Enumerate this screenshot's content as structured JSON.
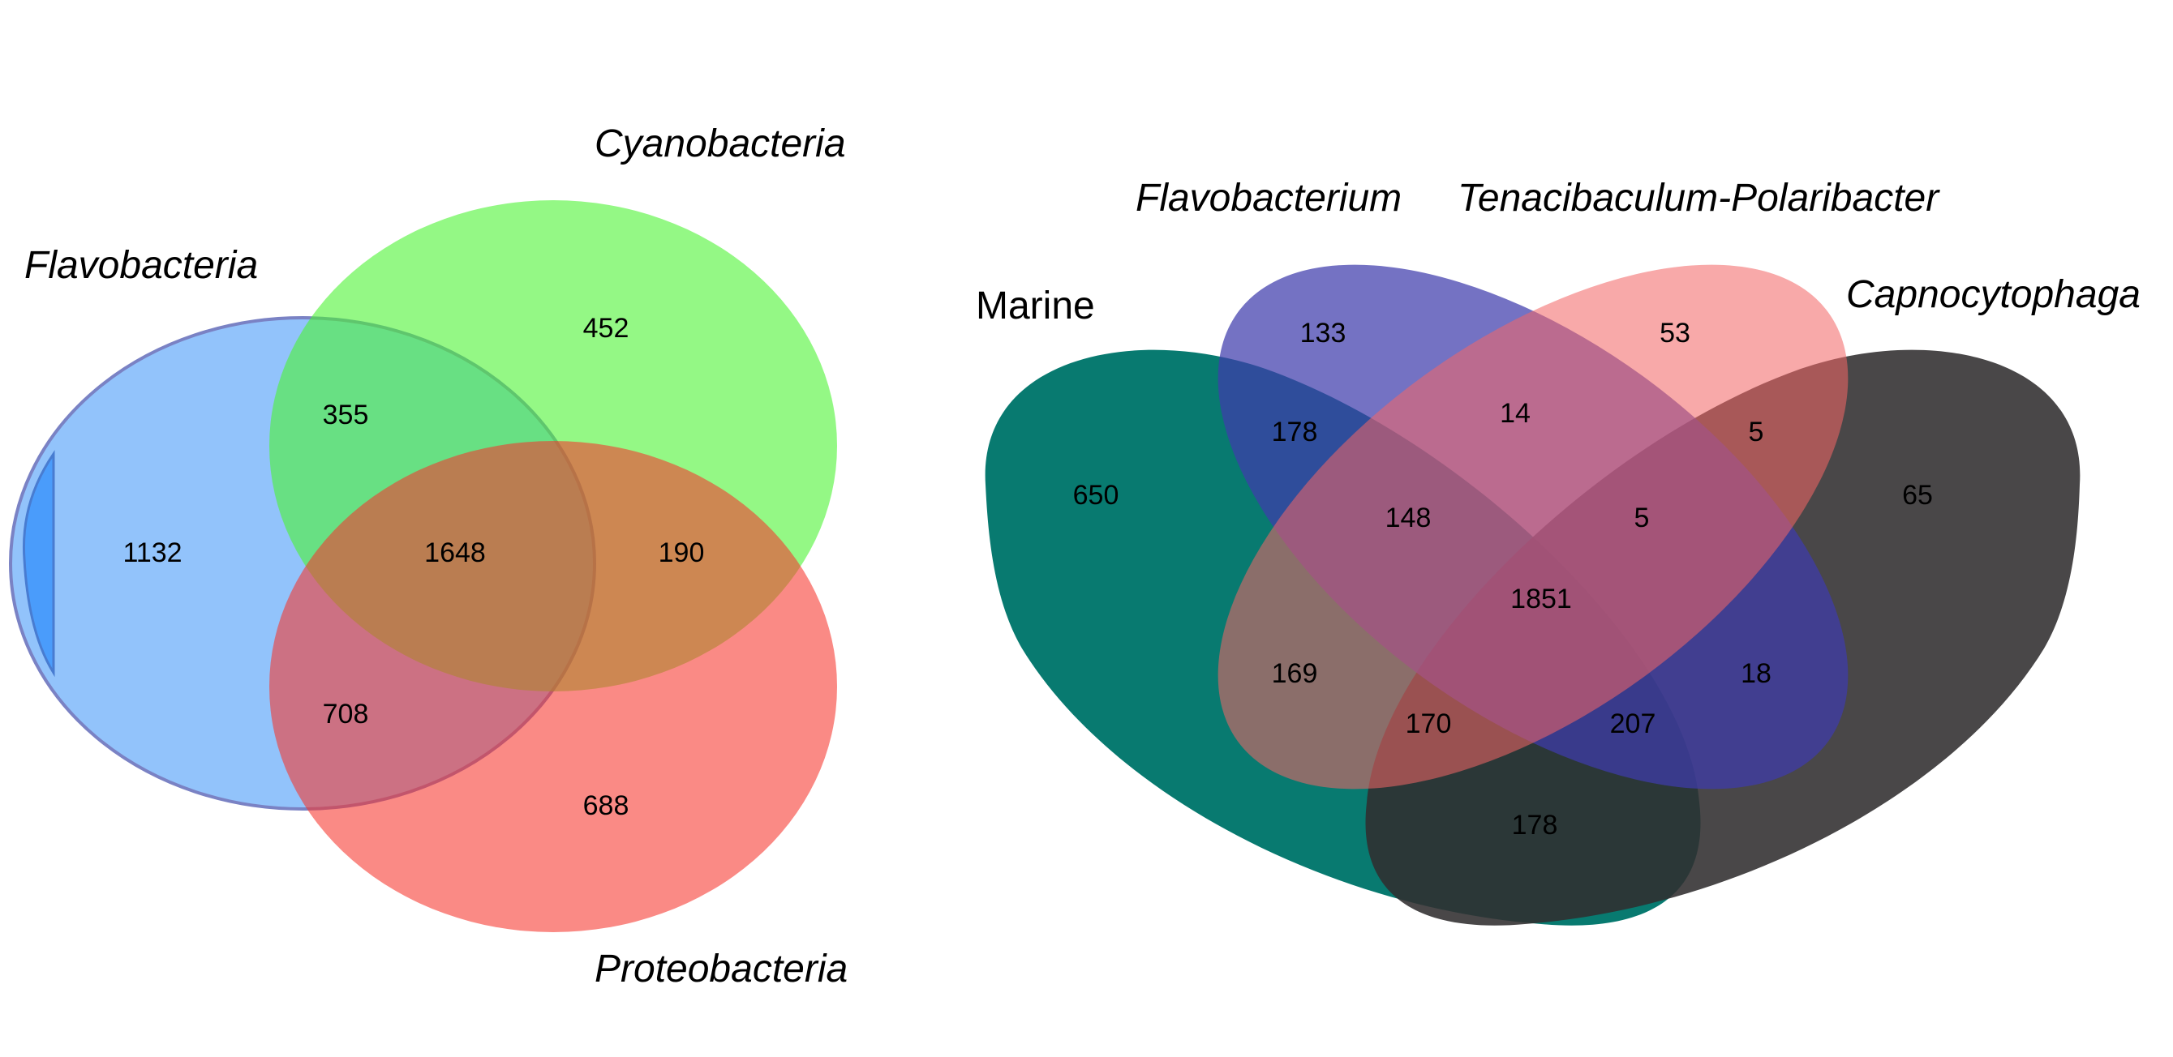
{
  "chart_data": [
    {
      "type": "venn",
      "sets": [
        {
          "name": "Flavobacteria",
          "color": "#5ea6f9",
          "italic": true
        },
        {
          "name": "Cyanobacteria",
          "color": "#4cf433",
          "italic": true
        },
        {
          "name": "Proteobacteria",
          "color": "#f7352c",
          "italic": true
        }
      ],
      "regions": [
        {
          "sets": [
            "Flavobacteria"
          ],
          "value": 1132
        },
        {
          "sets": [
            "Cyanobacteria"
          ],
          "value": 452
        },
        {
          "sets": [
            "Proteobacteria"
          ],
          "value": 688
        },
        {
          "sets": [
            "Flavobacteria",
            "Cyanobacteria"
          ],
          "value": 355
        },
        {
          "sets": [
            "Flavobacteria",
            "Proteobacteria"
          ],
          "value": 708
        },
        {
          "sets": [
            "Cyanobacteria",
            "Proteobacteria"
          ],
          "value": 190
        },
        {
          "sets": [
            "Flavobacteria",
            "Cyanobacteria",
            "Proteobacteria"
          ],
          "value": 1648
        }
      ]
    },
    {
      "type": "venn",
      "sets": [
        {
          "name": "Marine",
          "color": "#087a70",
          "italic": false
        },
        {
          "name": "Flavobacterium",
          "color": "#3f3cac",
          "italic": true
        },
        {
          "name": "Tenacibaculum-Polaribacter",
          "color": "#f26565",
          "italic": true
        },
        {
          "name": "Capnocytophaga",
          "color": "#302e2f",
          "italic": true
        }
      ],
      "regions": [
        {
          "sets": [
            "Marine"
          ],
          "value": 650
        },
        {
          "sets": [
            "Flavobacterium"
          ],
          "value": 133
        },
        {
          "sets": [
            "Tenacibaculum-Polaribacter"
          ],
          "value": 53
        },
        {
          "sets": [
            "Capnocytophaga"
          ],
          "value": 65
        },
        {
          "sets": [
            "Marine",
            "Flavobacterium"
          ],
          "value": 178
        },
        {
          "sets": [
            "Flavobacterium",
            "Tenacibaculum-Polaribacter"
          ],
          "value": 14
        },
        {
          "sets": [
            "Tenacibaculum-Polaribacter",
            "Capnocytophaga"
          ],
          "value": 5
        },
        {
          "sets": [
            "Marine",
            "Flavobacterium",
            "Tenacibaculum-Polaribacter"
          ],
          "value": 148
        },
        {
          "sets": [
            "Flavobacterium",
            "Tenacibaculum-Polaribacter",
            "Capnocytophaga"
          ],
          "value": 5
        },
        {
          "sets": [
            "Marine",
            "Flavobacterium",
            "Tenacibaculum-Polaribacter",
            "Capnocytophaga"
          ],
          "value": 1851
        },
        {
          "sets": [
            "Marine",
            "Tenacibaculum-Polaribacter"
          ],
          "value": 169
        },
        {
          "sets": [
            "Flavobacterium",
            "Capnocytophaga"
          ],
          "value": 18
        },
        {
          "sets": [
            "Marine",
            "Tenacibaculum-Polaribacter",
            "Capnocytophaga"
          ],
          "value": 170
        },
        {
          "sets": [
            "Marine",
            "Flavobacterium",
            "Capnocytophaga"
          ],
          "value": 207
        },
        {
          "sets": [
            "Marine",
            "Capnocytophaga"
          ],
          "value": 178
        }
      ]
    }
  ]
}
